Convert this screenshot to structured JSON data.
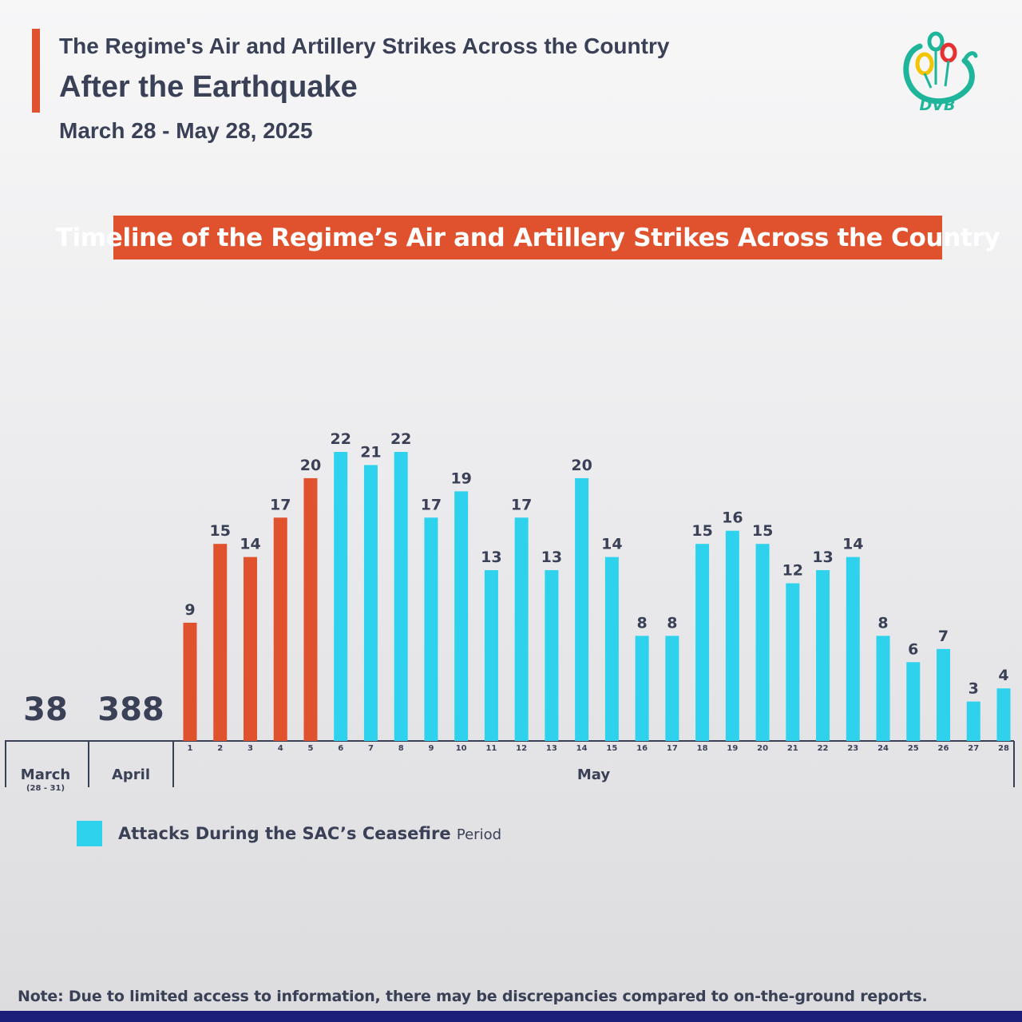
{
  "header": {
    "title_top": "The Regime's Air and Artillery Strikes Across the Country",
    "title_main": "After the Earthquake",
    "date_range": "March 28 - May 28, 2025",
    "logo_text": "DVB"
  },
  "banner": {
    "text": "Timeline of the Regime’s Air and Artillery Strikes Across the Country"
  },
  "legend": {
    "label_main": "Attacks During the SAC’s Ceasefire",
    "label_small": "Period"
  },
  "note": "Note: Due to limited access to information, there may be discrepancies compared to on-the-ground reports.",
  "colors": {
    "pre_ceasefire": "#e0512e",
    "ceasefire": "#2ed2ec",
    "text": "#3a4056",
    "footer": "#1b1f7a"
  },
  "chart_data": {
    "type": "bar",
    "title": "Timeline of the Regime’s Air and Artillery Strikes Across the Country",
    "period_totals": [
      {
        "label": "March",
        "sublabel": "(28 - 31)",
        "value": 38
      },
      {
        "label": "April",
        "sublabel": "",
        "value": 388
      }
    ],
    "group_label": "May",
    "categories": [
      "1",
      "2",
      "3",
      "4",
      "5",
      "6",
      "7",
      "8",
      "9",
      "10",
      "11",
      "12",
      "13",
      "14",
      "15",
      "16",
      "17",
      "18",
      "19",
      "20",
      "21",
      "22",
      "23",
      "24",
      "25",
      "26",
      "27",
      "28"
    ],
    "values": [
      9,
      15,
      14,
      17,
      20,
      22,
      21,
      22,
      17,
      19,
      13,
      17,
      13,
      20,
      14,
      8,
      8,
      15,
      16,
      15,
      12,
      13,
      14,
      8,
      6,
      7,
      3,
      4
    ],
    "ceasefire": [
      false,
      false,
      false,
      false,
      false,
      true,
      true,
      true,
      true,
      true,
      true,
      true,
      true,
      true,
      true,
      true,
      true,
      true,
      true,
      true,
      true,
      true,
      true,
      true,
      true,
      true,
      true,
      true
    ],
    "ylim": [
      0,
      22
    ],
    "grid": false,
    "legend_position": "bottom-left"
  }
}
